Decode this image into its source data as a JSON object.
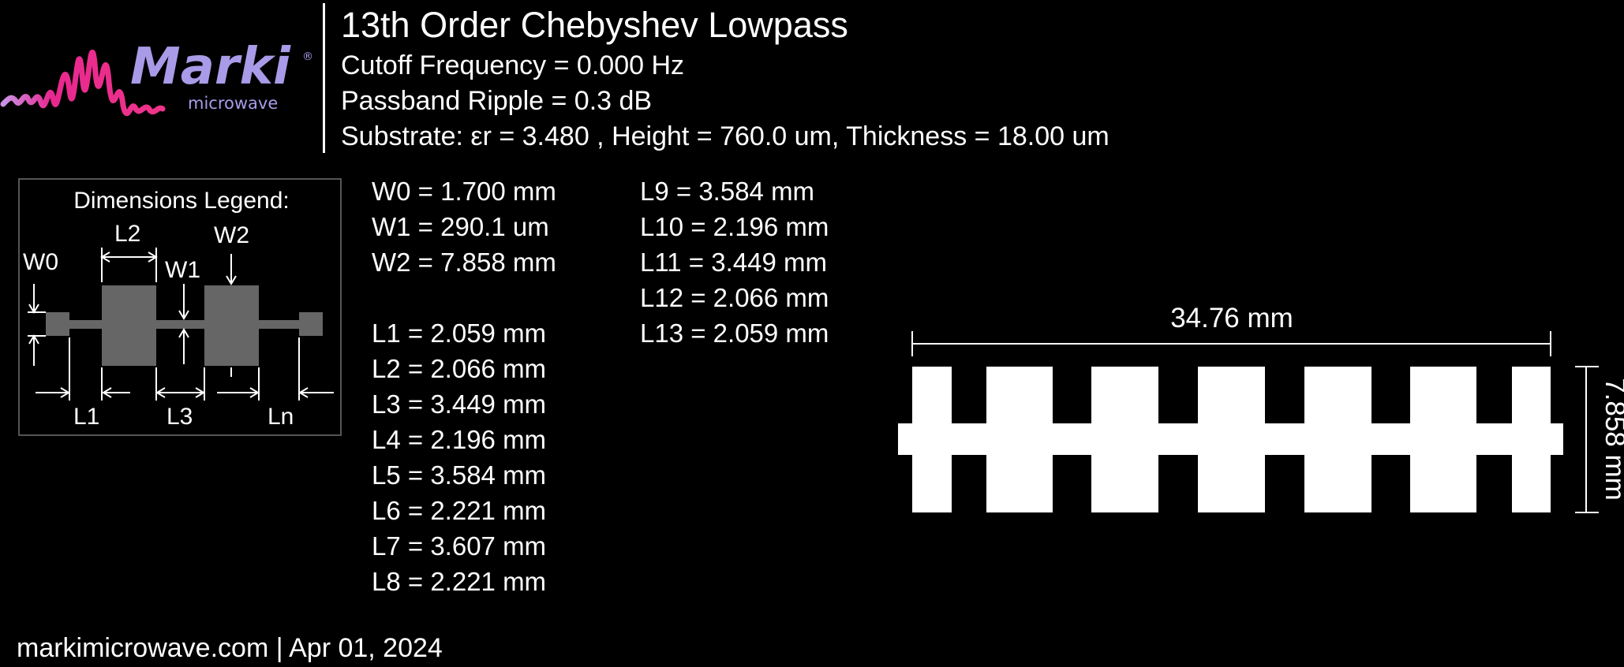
{
  "logo": {
    "brand": "Marki",
    "tagline": "microwave",
    "registered": "®",
    "colors": {
      "wave_light": "#c994e6",
      "wave_magenta": "#e6288f",
      "wave_pink": "#f0348a",
      "text_lavender": "#a99be8"
    }
  },
  "header": {
    "title": "13th Order Chebyshev Lowpass",
    "cutoff": "Cutoff Frequency = 0.000 Hz",
    "ripple": "Passband Ripple = 0.3 dB",
    "substrate": "Substrate: εr = 3.480 , Height = 760.0 um, Thickness = 18.00 um"
  },
  "legend": {
    "title": "Dimensions Legend:",
    "labels": {
      "w0": "W0",
      "w1": "W1",
      "w2": "W2",
      "l1": "L1",
      "l2": "L2",
      "l3": "L3",
      "ln": "Ln"
    },
    "colors": {
      "metal": "#666666",
      "border": "#555555"
    }
  },
  "dimensions": {
    "widths": [
      "W0 = 1.700 mm",
      "W1 = 290.1 um",
      "W2 = 7.858 mm"
    ],
    "lengths_col1": [
      "L1 = 2.059 mm",
      "L2 = 2.066 mm",
      "L3 = 3.449 mm",
      "L4 = 2.196 mm",
      "L5 = 3.584 mm",
      "L6 = 2.221 mm",
      "L7 = 3.607 mm",
      "L8 = 2.221 mm"
    ],
    "lengths_col2": [
      "L9 = 3.584 mm",
      "L10 = 2.196 mm",
      "L11 = 3.449 mm",
      "L12 = 2.066 mm",
      "L13 = 2.059 mm"
    ]
  },
  "filter": {
    "total_length": "34.76 mm",
    "total_height": "7.858 mm",
    "pad_count": 7,
    "color": "#ffffff"
  },
  "footer": {
    "text": "markimicrowave.com | Apr 01, 2024"
  }
}
